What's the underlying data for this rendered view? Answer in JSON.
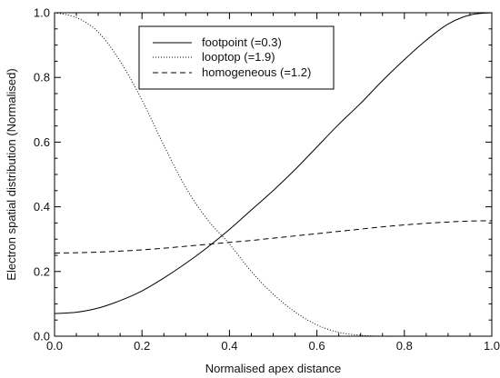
{
  "chart_data": {
    "type": "line",
    "title": "",
    "xlabel": "Normalised apex distance",
    "ylabel": "Electron spatial distribution (Normalised)",
    "xlim": [
      0.0,
      1.0
    ],
    "ylim": [
      0.0,
      1.0
    ],
    "x_ticks": [
      0.0,
      0.2,
      0.4,
      0.6,
      0.8,
      1.0
    ],
    "y_ticks": [
      0.0,
      0.2,
      0.4,
      0.6,
      0.8,
      1.0
    ],
    "x_tick_labels": [
      "0.0",
      "0.2",
      "0.4",
      "0.6",
      "0.8",
      "1.0"
    ],
    "y_tick_labels": [
      "0.0",
      "0.2",
      "0.4",
      "0.6",
      "0.8",
      "1.0"
    ],
    "grid": false,
    "legend_position": "top-center",
    "x": [
      0.0,
      0.05,
      0.1,
      0.15,
      0.2,
      0.25,
      0.3,
      0.35,
      0.4,
      0.45,
      0.5,
      0.55,
      0.6,
      0.65,
      0.7,
      0.75,
      0.8,
      0.85,
      0.9,
      0.95,
      1.0
    ],
    "series": [
      {
        "name": "footpoint (=0.3)",
        "line_style": "solid",
        "color": "#000000",
        "values": [
          0.07,
          0.074,
          0.087,
          0.11,
          0.14,
          0.18,
          0.225,
          0.275,
          0.33,
          0.39,
          0.45,
          0.515,
          0.585,
          0.655,
          0.72,
          0.79,
          0.855,
          0.915,
          0.965,
          0.993,
          1.0
        ]
      },
      {
        "name": "looptop (=1.9)",
        "line_style": "dotted",
        "color": "#000000",
        "values": [
          1.0,
          0.985,
          0.94,
          0.85,
          0.73,
          0.59,
          0.46,
          0.36,
          0.285,
          0.2,
          0.13,
          0.075,
          0.035,
          0.012,
          0.003,
          0.0,
          0.0,
          0.0,
          0.0,
          0.0,
          0.0
        ]
      },
      {
        "name": "homogeneous (=1.2)",
        "line_style": "dashed",
        "color": "#000000",
        "values": [
          0.257,
          0.258,
          0.26,
          0.263,
          0.267,
          0.272,
          0.278,
          0.284,
          0.29,
          0.296,
          0.303,
          0.31,
          0.317,
          0.324,
          0.331,
          0.338,
          0.344,
          0.349,
          0.353,
          0.356,
          0.357
        ]
      }
    ]
  }
}
